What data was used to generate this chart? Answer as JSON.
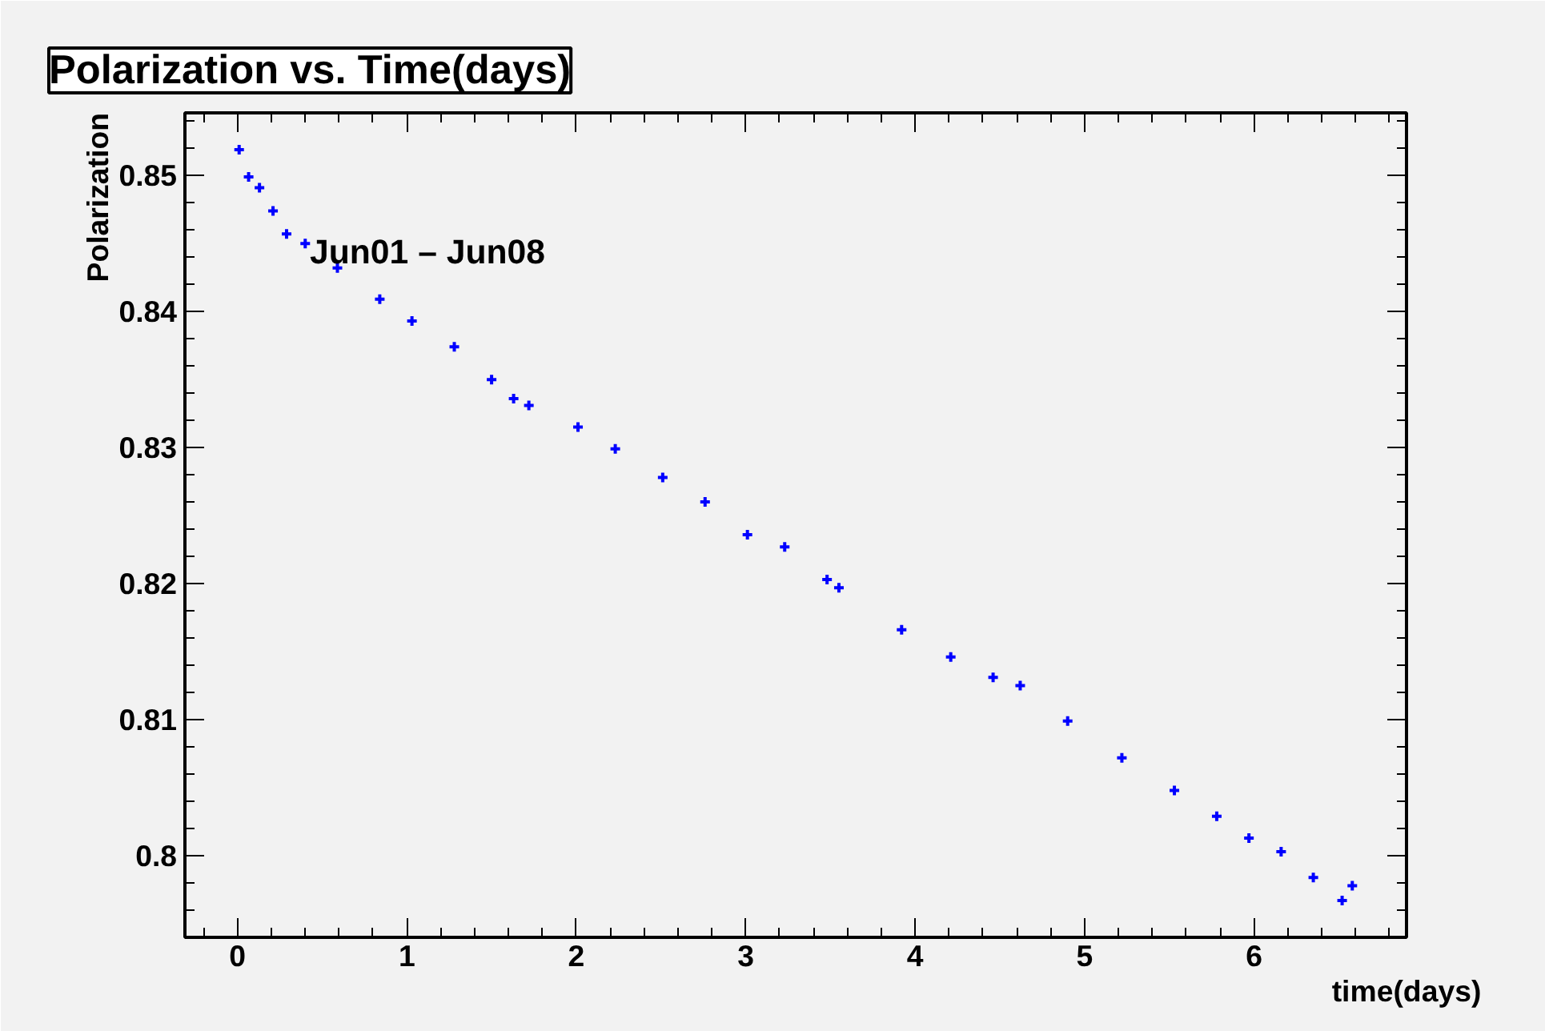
{
  "chart_data": {
    "type": "scatter",
    "title": "Polarization vs. Time(days)",
    "xlabel": "time(days)",
    "ylabel": "Polarization",
    "annotations": [
      "Jun01 – Jun08"
    ],
    "x": [
      0.01,
      0.066,
      0.13,
      0.21,
      0.29,
      0.4,
      0.59,
      0.84,
      1.03,
      1.28,
      1.5,
      1.63,
      1.72,
      2.01,
      2.23,
      2.51,
      2.76,
      3.01,
      3.23,
      3.48,
      3.55,
      3.92,
      4.21,
      4.46,
      4.62,
      4.9,
      5.22,
      5.53,
      5.78,
      5.97,
      6.16,
      6.35,
      6.52,
      6.58
    ],
    "series": [
      {
        "color": "#0000ff",
        "values": [
          0.8519,
          0.8499,
          0.8491,
          0.8474,
          0.8457,
          0.845,
          0.8432,
          0.8409,
          0.8393,
          0.8374,
          0.835,
          0.8336,
          0.8331,
          0.8315,
          0.8299,
          0.8278,
          0.826,
          0.8236,
          0.8227,
          0.8203,
          0.8197,
          0.8166,
          0.8146,
          0.8131,
          0.8125,
          0.8099,
          0.8072,
          0.8048,
          0.8029,
          0.8013,
          0.8003,
          0.7984,
          0.7967,
          0.7978
        ]
      }
    ],
    "xlim": [
      -0.31,
      6.9
    ],
    "ylim": [
      0.794,
      0.8546
    ],
    "xticks": [
      0,
      1,
      2,
      3,
      4,
      5,
      6
    ],
    "yticks": [
      0.8,
      0.81,
      0.82,
      0.83,
      0.84,
      0.85
    ],
    "grid": false,
    "marker": "cross"
  }
}
